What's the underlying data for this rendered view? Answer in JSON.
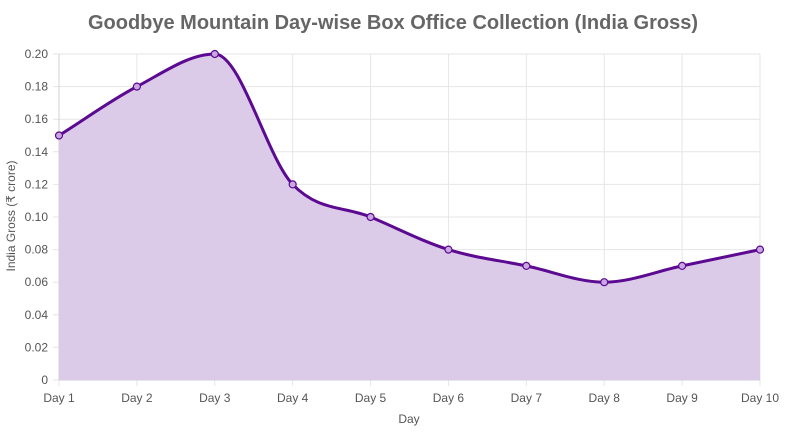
{
  "chart_data": {
    "type": "area",
    "title": "Goodbye Mountain Day-wise Box Office Collection (India Gross)",
    "xlabel": "Day",
    "ylabel": "India Gross (₹ crore)",
    "categories": [
      "Day 1",
      "Day 2",
      "Day 3",
      "Day 4",
      "Day 5",
      "Day 6",
      "Day 7",
      "Day 8",
      "Day 9",
      "Day 10"
    ],
    "series": [
      {
        "values": [
          0.15,
          0.18,
          0.2,
          0.12,
          0.1,
          0.08,
          0.07,
          0.06,
          0.07,
          0.08
        ]
      }
    ],
    "ylim": [
      0,
      0.2
    ],
    "yticks": [
      "0",
      "0.02",
      "0.04",
      "0.06",
      "0.08",
      "0.10",
      "0.12",
      "0.14",
      "0.16",
      "0.18",
      "0.20"
    ],
    "grid": true,
    "legend": "none",
    "colors": {
      "line": "#5b0a91",
      "fill": "#dccbe8",
      "point_fill": "#c9a7e0"
    }
  }
}
